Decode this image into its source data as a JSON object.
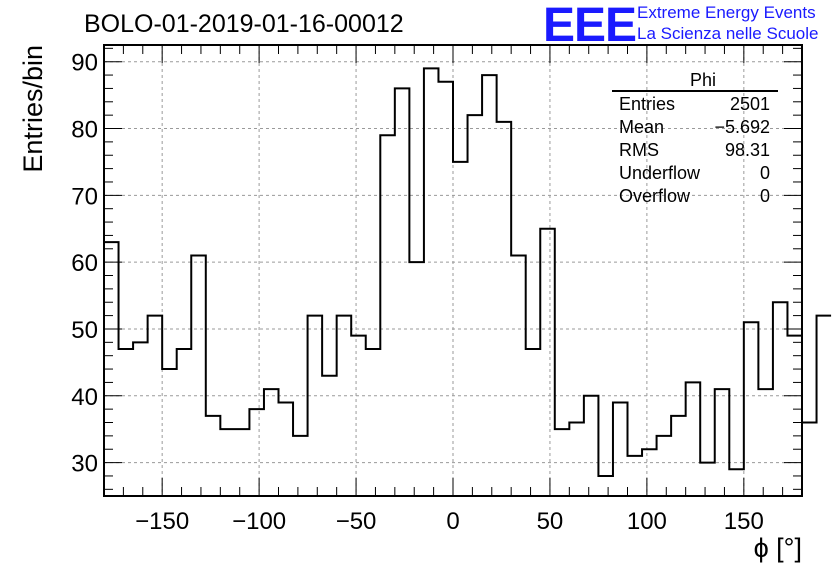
{
  "header": {
    "title": "BOLO-01-2019-01-16-00012",
    "logo_text": "EEE",
    "org_line1": "Extreme Energy Events",
    "org_line2": "La Scienza nelle Scuole"
  },
  "colors": {
    "logo": "#1a1aff",
    "line": "#000000",
    "grid": "#9a9a9a"
  },
  "chart_data": {
    "type": "bar",
    "histogram": true,
    "xlabel": "ϕ [°]",
    "ylabel": "Entries/bin",
    "xlim": [
      -180,
      180
    ],
    "ylim": [
      25,
      92.5
    ],
    "grid": true,
    "x_ticks": [
      -150,
      -100,
      -50,
      0,
      50,
      100,
      150
    ],
    "y_ticks": [
      30,
      40,
      50,
      60,
      70,
      80,
      90
    ],
    "bin_edges_start": -180,
    "bin_width": 7.5,
    "values": [
      63,
      47,
      48,
      52,
      44,
      47,
      61,
      37,
      35,
      35,
      38,
      41,
      39,
      34,
      52,
      43,
      52,
      49,
      47,
      79,
      86,
      60,
      89,
      87,
      75,
      82,
      88,
      81,
      61,
      47,
      65,
      35,
      36,
      40,
      28,
      39,
      31,
      32,
      34,
      37,
      42,
      30,
      41,
      29,
      51,
      41,
      54,
      49,
      36,
      52
    ],
    "stats": {
      "name": "Phi",
      "rows": [
        {
          "label": "Entries",
          "value": "2501"
        },
        {
          "label": "Mean",
          "value": "−5.692"
        },
        {
          "label": "RMS",
          "value": "98.31"
        },
        {
          "label": "Underflow",
          "value": "0"
        },
        {
          "label": "Overflow",
          "value": "0"
        }
      ]
    }
  }
}
